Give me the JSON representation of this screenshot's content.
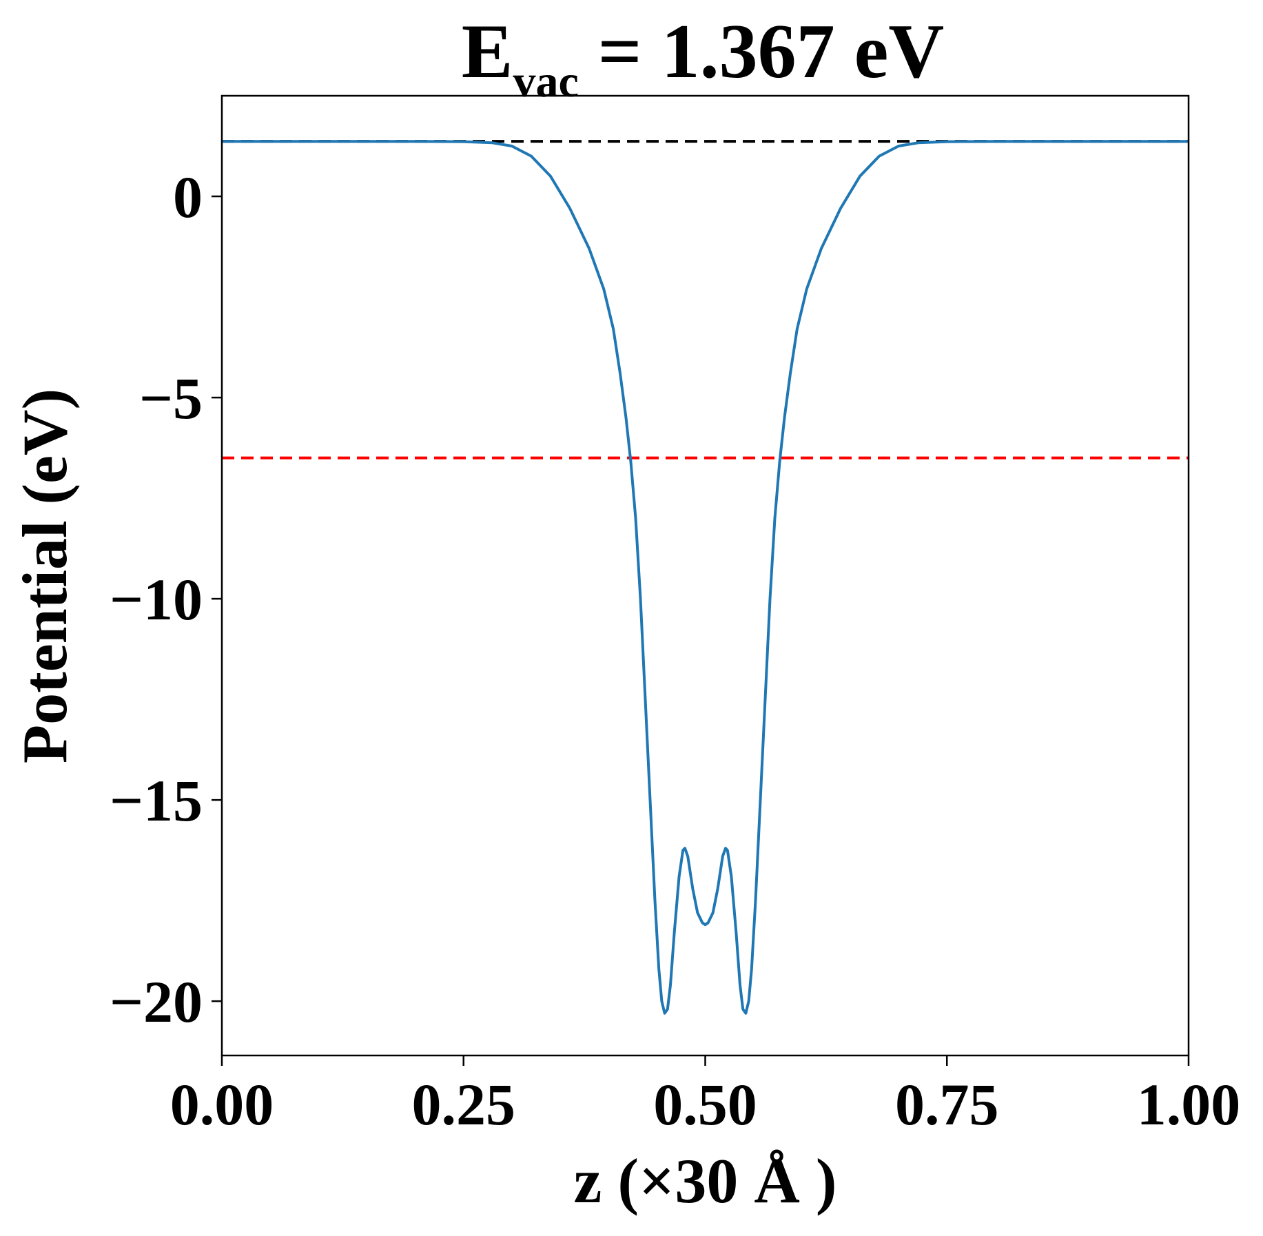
{
  "chart_data": {
    "type": "line",
    "title": {
      "main": "E",
      "subscript": "vac",
      "rest": " = 1.367 eV"
    },
    "xlabel": "z (×30 Å )",
    "ylabel": "Potential (eV)",
    "xlim": [
      0.0,
      1.0
    ],
    "ylim": [
      -21.35,
      2.5
    ],
    "xticks": [
      {
        "value": 0.0,
        "label": "0.00"
      },
      {
        "value": 0.25,
        "label": "0.25"
      },
      {
        "value": 0.5,
        "label": "0.50"
      },
      {
        "value": 0.75,
        "label": "0.75"
      },
      {
        "value": 1.0,
        "label": "1.00"
      }
    ],
    "yticks": [
      {
        "value": 0,
        "label": "0"
      },
      {
        "value": -5,
        "label": "−5"
      },
      {
        "value": -10,
        "label": "−10"
      },
      {
        "value": -15,
        "label": "−15"
      },
      {
        "value": -20,
        "label": "−20"
      }
    ],
    "grid": false,
    "reference_lines": [
      {
        "y": 1.367,
        "color": "#000000",
        "style": "dashed"
      },
      {
        "y": -6.5,
        "color": "#ff0000",
        "style": "dashed"
      }
    ],
    "series": [
      {
        "color": "#1f77b4",
        "points": [
          [
            0.0,
            1.367
          ],
          [
            0.1,
            1.367
          ],
          [
            0.2,
            1.367
          ],
          [
            0.25,
            1.36
          ],
          [
            0.28,
            1.33
          ],
          [
            0.3,
            1.25
          ],
          [
            0.32,
            1.0
          ],
          [
            0.34,
            0.5
          ],
          [
            0.36,
            -0.3
          ],
          [
            0.38,
            -1.3
          ],
          [
            0.395,
            -2.3
          ],
          [
            0.405,
            -3.3
          ],
          [
            0.412,
            -4.4
          ],
          [
            0.418,
            -5.5
          ],
          [
            0.423,
            -6.6
          ],
          [
            0.428,
            -8.0
          ],
          [
            0.433,
            -10.0
          ],
          [
            0.438,
            -12.5
          ],
          [
            0.443,
            -15.0
          ],
          [
            0.448,
            -17.5
          ],
          [
            0.452,
            -19.2
          ],
          [
            0.455,
            -20.0
          ],
          [
            0.458,
            -20.3
          ],
          [
            0.461,
            -20.2
          ],
          [
            0.464,
            -19.6
          ],
          [
            0.468,
            -18.3
          ],
          [
            0.473,
            -16.9
          ],
          [
            0.477,
            -16.25
          ],
          [
            0.479,
            -16.2
          ],
          [
            0.482,
            -16.4
          ],
          [
            0.487,
            -17.2
          ],
          [
            0.492,
            -17.8
          ],
          [
            0.497,
            -18.05
          ],
          [
            0.5,
            -18.1
          ],
          [
            0.503,
            -18.05
          ],
          [
            0.508,
            -17.8
          ],
          [
            0.513,
            -17.2
          ],
          [
            0.518,
            -16.4
          ],
          [
            0.521,
            -16.2
          ],
          [
            0.523,
            -16.25
          ],
          [
            0.527,
            -16.9
          ],
          [
            0.532,
            -18.3
          ],
          [
            0.536,
            -19.6
          ],
          [
            0.539,
            -20.2
          ],
          [
            0.542,
            -20.3
          ],
          [
            0.545,
            -20.0
          ],
          [
            0.548,
            -19.2
          ],
          [
            0.552,
            -17.5
          ],
          [
            0.557,
            -15.0
          ],
          [
            0.562,
            -12.5
          ],
          [
            0.567,
            -10.0
          ],
          [
            0.572,
            -8.0
          ],
          [
            0.577,
            -6.6
          ],
          [
            0.582,
            -5.5
          ],
          [
            0.588,
            -4.4
          ],
          [
            0.595,
            -3.3
          ],
          [
            0.605,
            -2.3
          ],
          [
            0.62,
            -1.3
          ],
          [
            0.64,
            -0.3
          ],
          [
            0.66,
            0.5
          ],
          [
            0.68,
            1.0
          ],
          [
            0.7,
            1.25
          ],
          [
            0.72,
            1.33
          ],
          [
            0.75,
            1.36
          ],
          [
            0.8,
            1.367
          ],
          [
            0.9,
            1.367
          ],
          [
            1.0,
            1.367
          ]
        ]
      }
    ]
  }
}
